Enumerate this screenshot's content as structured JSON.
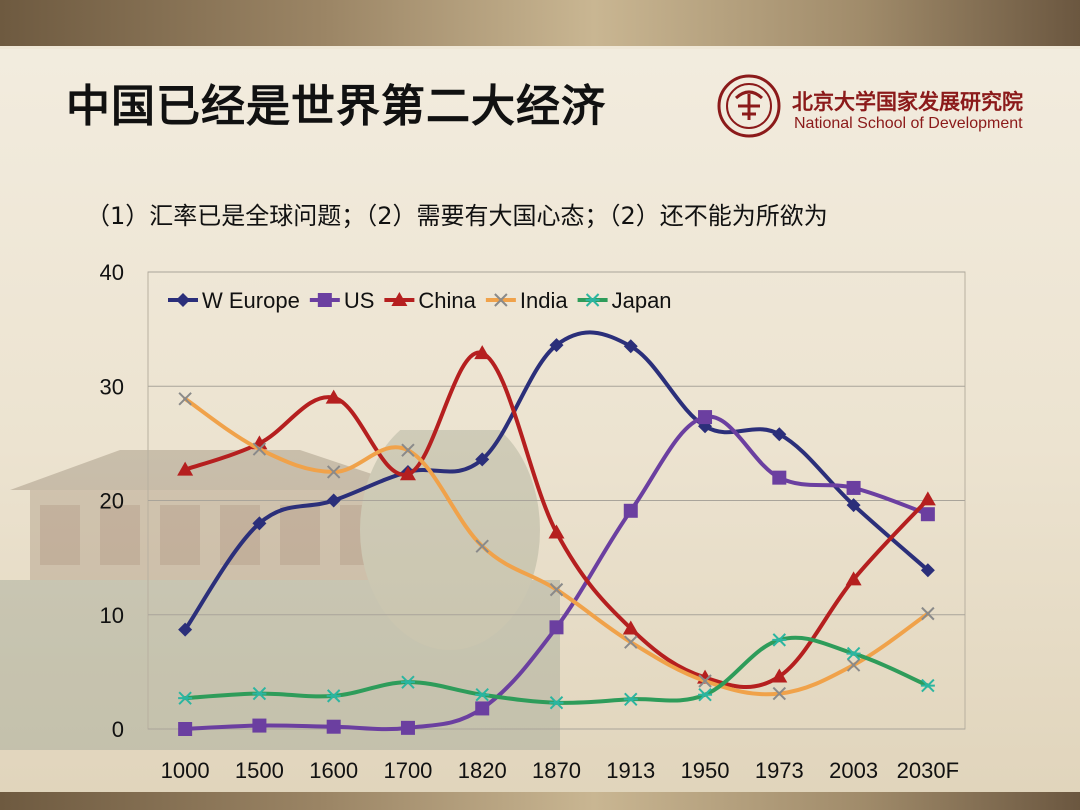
{
  "slide": {
    "title": "中国已经是世界第二大经济",
    "subtitle": "（1）汇率已是全球问题；（2）需要有大国心态；（2）还不能为所欲为",
    "logo": {
      "cn": "北京大学国家发展研究院",
      "en": "National School of Development"
    }
  },
  "chart_data": {
    "type": "line",
    "categories": [
      "1000",
      "1500",
      "1600",
      "1700",
      "1820",
      "1870",
      "1913",
      "1950",
      "1973",
      "2003",
      "2030F"
    ],
    "ylim": [
      0,
      40
    ],
    "yticks": [
      0,
      10,
      20,
      30,
      40
    ],
    "grid": true,
    "legend_position": "top-left",
    "series": [
      {
        "name": "W Europe",
        "color": "#2b2f7a",
        "marker": "diamond",
        "values": [
          8.7,
          18.0,
          20.0,
          22.5,
          23.6,
          33.6,
          33.5,
          26.5,
          25.8,
          19.6,
          13.9
        ]
      },
      {
        "name": "US",
        "color": "#6b3fa0",
        "marker": "square",
        "values": [
          0.0,
          0.3,
          0.2,
          0.1,
          1.8,
          8.9,
          19.1,
          27.3,
          22.0,
          21.1,
          18.8
        ]
      },
      {
        "name": "China",
        "color": "#b51f1f",
        "marker": "triangle",
        "values": [
          22.7,
          25.0,
          29.0,
          22.3,
          32.9,
          17.2,
          8.8,
          4.5,
          4.6,
          13.1,
          20.1
        ]
      },
      {
        "name": "India",
        "color": "#f0a24a",
        "marker": "x",
        "values": [
          28.9,
          24.5,
          22.5,
          24.4,
          16.0,
          12.2,
          7.6,
          4.2,
          3.1,
          5.6,
          10.1
        ]
      },
      {
        "name": "Japan",
        "color": "#2e9c5a",
        "marker": "star",
        "values": [
          2.7,
          3.1,
          2.9,
          4.1,
          3.0,
          2.3,
          2.6,
          3.0,
          7.8,
          6.6,
          3.8
        ]
      }
    ]
  }
}
